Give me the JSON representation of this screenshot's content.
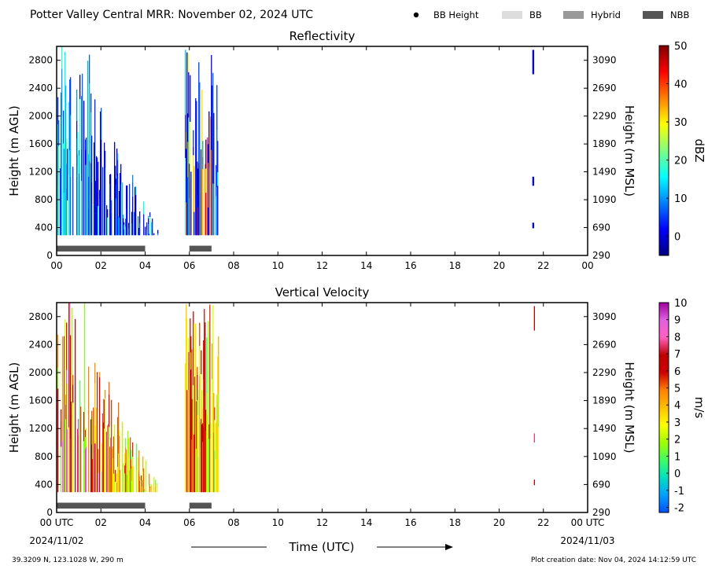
{
  "header": {
    "title": "Potter Valley Central MRR:  November 02, 2024 UTC",
    "legend": [
      {
        "label": "BB Height",
        "swatch": "dot",
        "color": "#000000"
      },
      {
        "label": "BB",
        "swatch": "box",
        "color": "#dddddd"
      },
      {
        "label": "Hybrid",
        "swatch": "box",
        "color": "#999999"
      },
      {
        "label": "NBB",
        "swatch": "box",
        "color": "#555555"
      }
    ]
  },
  "chart_data": [
    {
      "type": "heatmap",
      "title": "Reflectivity",
      "ylabel_left": "Height (m AGL)",
      "ylabel_right": "Height (m MSL)",
      "x_ticks": [
        "00",
        "02",
        "04",
        "06",
        "08",
        "10",
        "12",
        "14",
        "16",
        "18",
        "20",
        "22",
        "00"
      ],
      "x_range_hours": [
        0,
        24
      ],
      "y_range_m_agl": [
        0,
        3000
      ],
      "y_ticks_left": [
        "0",
        "400",
        "800",
        "1200",
        "1600",
        "2000",
        "2400",
        "2800"
      ],
      "y_ticks_right": [
        "290",
        "690",
        "1090",
        "1490",
        "1890",
        "2290",
        "2690",
        "3090"
      ],
      "colorbar": {
        "label": "dBZ",
        "range": [
          -5,
          50
        ],
        "ticks": [
          "0",
          "10",
          "20",
          "30",
          "40",
          "50"
        ],
        "tick_values": [
          0,
          10,
          20,
          30,
          40,
          50
        ],
        "colors": [
          "#000080",
          "#0000ff",
          "#0080ff",
          "#00ffff",
          "#80ff80",
          "#ffff00",
          "#ff8000",
          "#ff0000",
          "#800000"
        ]
      },
      "echoes": [
        {
          "start_hour": 0.0,
          "end_hour": 4.9,
          "max_height_m": 3000
        },
        {
          "start_hour": 5.8,
          "end_hour": 7.3,
          "max_height_m": 3000
        },
        {
          "start_hour": 21.5,
          "end_hour": 21.6,
          "max_height_m": 3000
        }
      ],
      "nbb_periods": [
        {
          "start_hour": 0.0,
          "end_hour": 4.0,
          "type": "NBB"
        },
        {
          "start_hour": 6.0,
          "end_hour": 7.0,
          "type": "NBB"
        }
      ]
    },
    {
      "type": "heatmap",
      "title": "Vertical Velocity",
      "ylabel_left": "Height (m AGL)",
      "ylabel_right": "Height (m MSL)",
      "x_ticks": [
        "00 UTC",
        "02",
        "04",
        "06",
        "08",
        "10",
        "12",
        "14",
        "16",
        "18",
        "20",
        "22",
        "00 UTC"
      ],
      "x_date_left": "2024/11/02",
      "x_date_right": "2024/11/03",
      "xlabel": "Time (UTC)",
      "x_range_hours": [
        0,
        24
      ],
      "y_range_m_agl": [
        0,
        3000
      ],
      "y_ticks_left": [
        "0",
        "400",
        "800",
        "1200",
        "1600",
        "2000",
        "2400",
        "2800"
      ],
      "y_ticks_right": [
        "290",
        "690",
        "1090",
        "1490",
        "1890",
        "2290",
        "2690",
        "3090"
      ],
      "colorbar": {
        "label": "m/s",
        "range": [
          -2.3,
          10
        ],
        "ticks": [
          "-2",
          "-1",
          "0",
          "1",
          "2",
          "3",
          "4",
          "5",
          "6",
          "7",
          "8",
          "9",
          "10"
        ],
        "tick_values": [
          -2,
          -1,
          0,
          1,
          2,
          3,
          4,
          5,
          6,
          7,
          8,
          9,
          10
        ],
        "colors": [
          "#0050ff",
          "#00a0ff",
          "#00e0c0",
          "#40ff60",
          "#a0ff00",
          "#ffff00",
          "#ffc000",
          "#ff8000",
          "#d00000",
          "#c00000",
          "#ff60c0",
          "#e060e0",
          "#a000a0"
        ]
      },
      "echoes": [
        {
          "start_hour": 0.0,
          "end_hour": 4.9,
          "max_height_m": 3000
        },
        {
          "start_hour": 5.8,
          "end_hour": 7.3,
          "max_height_m": 3000
        },
        {
          "start_hour": 21.5,
          "end_hour": 21.6,
          "max_height_m": 3000
        }
      ],
      "nbb_periods": [
        {
          "start_hour": 0.0,
          "end_hour": 4.0,
          "type": "NBB"
        },
        {
          "start_hour": 6.0,
          "end_hour": 7.0,
          "type": "NBB"
        }
      ]
    }
  ],
  "footer": {
    "location": "39.3209 N, 123.1028 W, 290 m",
    "created": "Plot creation date: Nov 04, 2024 14:12:59 UTC"
  }
}
